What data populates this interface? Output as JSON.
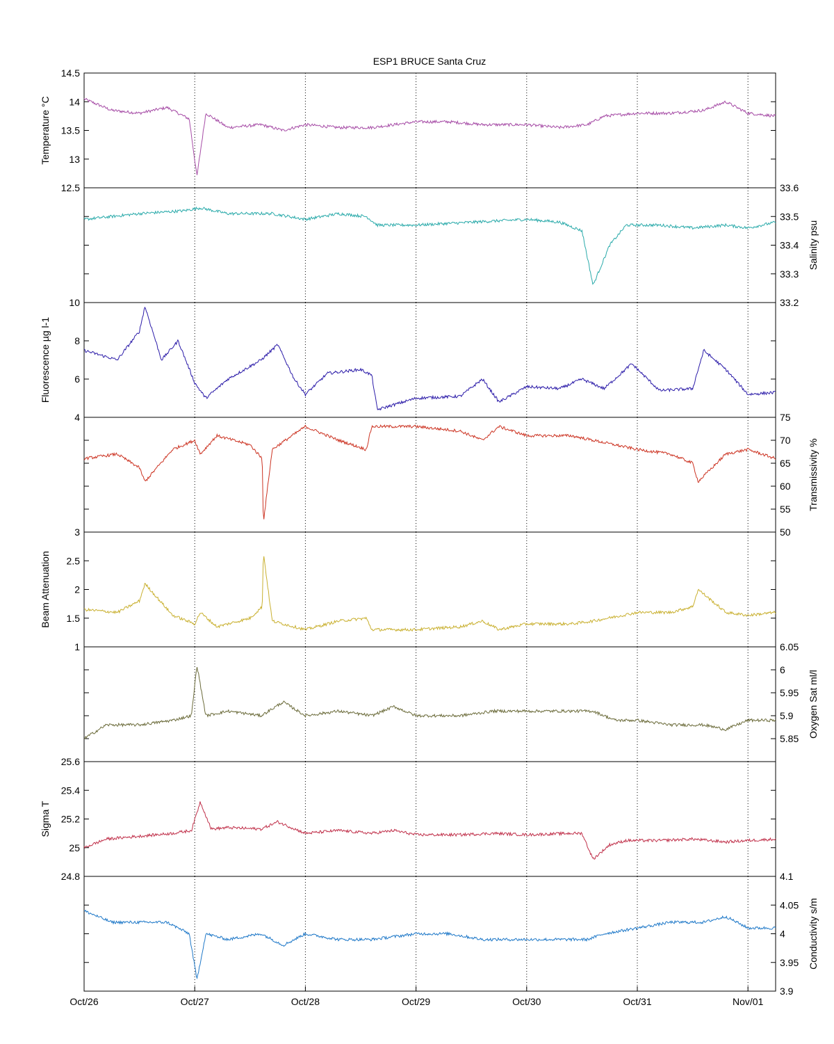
{
  "figure": {
    "title": "ESP1 BRUCE Santa Cruz"
  },
  "chart_data": {
    "type": "line",
    "title": "ESP1 BRUCE Santa Cruz",
    "xlabel": "",
    "x_ticks": [
      "Oct/26",
      "Oct/27",
      "Oct/28",
      "Oct/29",
      "Oct/30",
      "Oct/31",
      "Nov/01"
    ],
    "x_range": [
      "Oct/26",
      "Nov/01"
    ],
    "grid": "vertical dotted lines at each day",
    "panels": [
      {
        "ylabel": "Temperature °C",
        "axis_side": "left",
        "color": "#a64ca6",
        "ylim": [
          12.5,
          14.5
        ],
        "yticks": [
          "12.5",
          "13",
          "13.5",
          "14",
          "14.5"
        ],
        "series": [
          {
            "x": [
              0,
              0.25,
              0.5,
              0.75,
              0.95,
              1.02,
              1.1,
              1.3,
              1.6,
              1.8,
              2.0,
              2.3,
              2.6,
              3.0,
              3.3,
              3.6,
              4.0,
              4.3,
              4.55,
              4.7,
              5.0,
              5.3,
              5.6,
              5.8,
              6.0,
              6.25
            ],
            "values": [
              14.05,
              13.85,
              13.8,
              13.9,
              13.7,
              12.7,
              13.8,
              13.55,
              13.6,
              13.5,
              13.6,
              13.55,
              13.55,
              13.65,
              13.65,
              13.6,
              13.6,
              13.55,
              13.6,
              13.75,
              13.8,
              13.8,
              13.85,
              14.0,
              13.8,
              13.75
            ]
          }
        ]
      },
      {
        "ylabel": "Salinity psu",
        "axis_side": "right",
        "color": "#2aaaaa",
        "ylim": [
          33.2,
          33.6
        ],
        "yticks": [
          "33.2",
          "33.3",
          "33.4",
          "33.5",
          "33.6"
        ],
        "series": [
          {
            "x": [
              0,
              0.5,
              0.9,
              1.05,
              1.3,
              1.7,
              2.0,
              2.3,
              2.55,
              2.65,
              3.0,
              3.5,
              4.0,
              4.3,
              4.5,
              4.6,
              4.75,
              4.9,
              5.2,
              5.5,
              5.8,
              6.0,
              6.25
            ],
            "values": [
              33.49,
              33.51,
              33.52,
              33.53,
              33.51,
              33.51,
              33.49,
              33.51,
              33.5,
              33.47,
              33.47,
              33.48,
              33.49,
              33.48,
              33.45,
              33.26,
              33.4,
              33.47,
              33.47,
              33.46,
              33.47,
              33.46,
              33.48
            ]
          }
        ]
      },
      {
        "ylabel": "Fluorescence µg l-1",
        "axis_side": "left",
        "color": "#2a1aa8",
        "ylim": [
          4,
          10
        ],
        "yticks": [
          "4",
          "6",
          "8",
          "10"
        ],
        "series": [
          {
            "x": [
              0,
              0.3,
              0.5,
              0.55,
              0.7,
              0.85,
              1.0,
              1.1,
              1.3,
              1.6,
              1.75,
              1.9,
              2.0,
              2.2,
              2.5,
              2.6,
              2.65,
              3.0,
              3.4,
              3.6,
              3.75,
              4.0,
              4.3,
              4.5,
              4.7,
              4.95,
              5.2,
              5.5,
              5.6,
              5.8,
              6.0,
              6.25
            ],
            "values": [
              7.5,
              7.0,
              8.5,
              9.8,
              7.0,
              8.0,
              5.8,
              5.0,
              6.0,
              7.0,
              7.8,
              6.0,
              5.2,
              6.3,
              6.5,
              6.2,
              4.4,
              5.0,
              5.1,
              6.0,
              4.8,
              5.6,
              5.5,
              6.0,
              5.5,
              6.8,
              5.4,
              5.5,
              7.5,
              6.5,
              5.2,
              5.3
            ]
          }
        ]
      },
      {
        "ylabel": "Transmissivity %",
        "axis_side": "right",
        "color": "#cc3322",
        "ylim": [
          50,
          75
        ],
        "yticks": [
          "50",
          "55",
          "60",
          "65",
          "70",
          "75"
        ],
        "series": [
          {
            "x": [
              0,
              0.3,
              0.5,
              0.55,
              0.8,
              1.0,
              1.05,
              1.2,
              1.5,
              1.61,
              1.62,
              1.7,
              2.0,
              2.3,
              2.55,
              2.6,
              3.0,
              3.4,
              3.6,
              3.75,
              4.0,
              4.4,
              4.6,
              5.0,
              5.3,
              5.5,
              5.55,
              5.8,
              6.0,
              6.25
            ],
            "values": [
              66,
              67,
              64,
              61,
              68,
              70,
              67,
              71,
              69,
              66,
              52,
              68,
              73,
              70,
              68,
              73,
              73,
              72,
              70,
              73,
              71,
              71,
              70,
              68,
              67,
              65,
              61,
              67,
              68,
              66
            ]
          }
        ]
      },
      {
        "ylabel": "Beam Attenuation",
        "axis_side": "left",
        "color": "#c9b030",
        "ylim": [
          1,
          3
        ],
        "yticks": [
          "1",
          "1.5",
          "2",
          "2.5",
          "3"
        ],
        "series": [
          {
            "x": [
              0,
              0.3,
              0.5,
              0.55,
              0.8,
              1.0,
              1.05,
              1.2,
              1.5,
              1.61,
              1.62,
              1.7,
              2.0,
              2.3,
              2.55,
              2.6,
              3.0,
              3.4,
              3.6,
              3.75,
              4.0,
              4.4,
              4.6,
              5.0,
              5.3,
              5.5,
              5.55,
              5.8,
              6.0,
              6.25
            ],
            "values": [
              1.65,
              1.6,
              1.8,
              2.1,
              1.55,
              1.4,
              1.6,
              1.35,
              1.5,
              1.7,
              2.65,
              1.45,
              1.3,
              1.45,
              1.5,
              1.3,
              1.3,
              1.35,
              1.45,
              1.3,
              1.4,
              1.4,
              1.45,
              1.6,
              1.6,
              1.7,
              2.0,
              1.6,
              1.55,
              1.6
            ]
          }
        ]
      },
      {
        "ylabel": "Oxygen Sat ml/l",
        "axis_side": "right",
        "color": "#6b6b3a",
        "ylim": [
          5.8,
          6.05
        ],
        "yticks": [
          "5.85",
          "5.9",
          "5.95",
          "6",
          "6.05"
        ],
        "series": [
          {
            "x": [
              0,
              0.2,
              0.5,
              0.8,
              0.97,
              1.02,
              1.1,
              1.3,
              1.6,
              1.8,
              2.0,
              2.3,
              2.6,
              2.8,
              3.0,
              3.4,
              3.7,
              4.0,
              4.4,
              4.6,
              4.8,
              5.0,
              5.3,
              5.6,
              5.8,
              6.0,
              6.25
            ],
            "values": [
              5.85,
              5.88,
              5.88,
              5.89,
              5.9,
              6.01,
              5.9,
              5.91,
              5.9,
              5.93,
              5.9,
              5.91,
              5.9,
              5.92,
              5.9,
              5.9,
              5.91,
              5.91,
              5.91,
              5.91,
              5.89,
              5.89,
              5.88,
              5.88,
              5.87,
              5.89,
              5.89
            ]
          }
        ]
      },
      {
        "ylabel": "Sigma T",
        "axis_side": "left",
        "color": "#c0304a",
        "ylim": [
          24.8,
          25.6
        ],
        "yticks": [
          "24.8",
          "25",
          "25.2",
          "25.4",
          "25.6"
        ],
        "series": [
          {
            "x": [
              0,
              0.2,
              0.5,
              0.8,
              0.97,
              1.05,
              1.15,
              1.3,
              1.6,
              1.75,
              2.0,
              2.3,
              2.6,
              2.8,
              3.0,
              3.4,
              3.7,
              4.0,
              4.4,
              4.5,
              4.6,
              4.75,
              4.9,
              5.2,
              5.5,
              5.8,
              6.0,
              6.25
            ],
            "values": [
              25.0,
              25.06,
              25.08,
              25.1,
              25.12,
              25.32,
              25.13,
              25.14,
              25.13,
              25.18,
              25.1,
              25.12,
              25.1,
              25.12,
              25.09,
              25.09,
              25.1,
              25.09,
              25.1,
              25.1,
              24.92,
              25.02,
              25.05,
              25.05,
              25.06,
              25.04,
              25.05,
              25.06
            ]
          }
        ]
      },
      {
        "ylabel": "Conductivity s/m",
        "axis_side": "right",
        "color": "#1e78c8",
        "ylim": [
          3.9,
          4.1
        ],
        "yticks": [
          "3.9",
          "3.95",
          "4",
          "4.05",
          "4.1"
        ],
        "series": [
          {
            "x": [
              0,
              0.25,
              0.5,
              0.75,
              0.95,
              1.02,
              1.1,
              1.3,
              1.6,
              1.8,
              2.0,
              2.3,
              2.6,
              3.0,
              3.3,
              3.6,
              4.0,
              4.3,
              4.55,
              4.7,
              5.0,
              5.3,
              5.6,
              5.8,
              6.0,
              6.25
            ],
            "values": [
              4.04,
              4.02,
              4.02,
              4.02,
              4.0,
              3.92,
              4.0,
              3.99,
              4.0,
              3.98,
              4.0,
              3.99,
              3.99,
              4.0,
              4.0,
              3.99,
              3.99,
              3.99,
              3.99,
              4.0,
              4.01,
              4.02,
              4.02,
              4.03,
              4.01,
              4.01
            ]
          }
        ]
      }
    ]
  }
}
